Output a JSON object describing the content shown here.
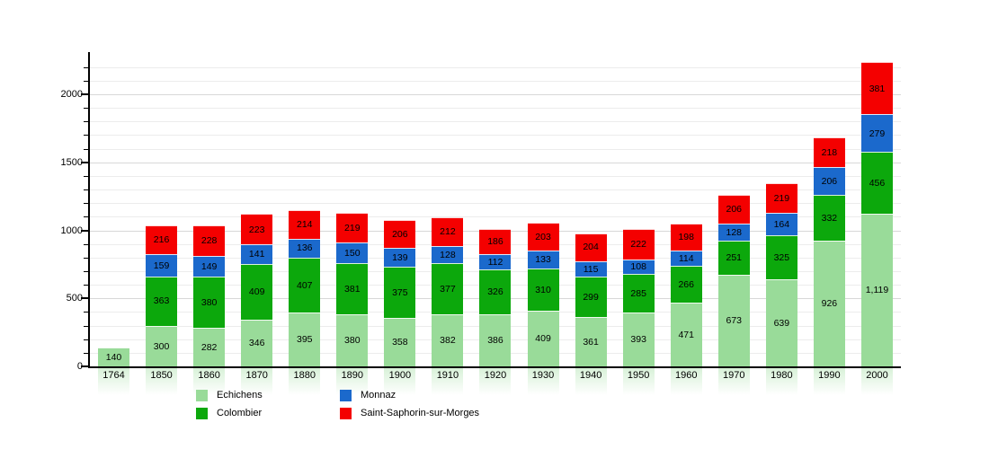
{
  "chart_data": {
    "type": "bar",
    "stacked": true,
    "title": "",
    "categories": [
      "1764",
      "1850",
      "1860",
      "1870",
      "1880",
      "1890",
      "1900",
      "1910",
      "1920",
      "1930",
      "1940",
      "1950",
      "1960",
      "1970",
      "1980",
      "1990",
      "2000"
    ],
    "series": [
      {
        "name": "Echichens",
        "color": "#99db99",
        "values": [
          140,
          300,
          282,
          346,
          395,
          380,
          358,
          382,
          386,
          409,
          361,
          393,
          471,
          673,
          639,
          926,
          1119
        ]
      },
      {
        "name": "Colombier",
        "color": "#0ca80c",
        "values": [
          0,
          363,
          380,
          409,
          407,
          381,
          375,
          377,
          326,
          310,
          299,
          285,
          266,
          251,
          325,
          332,
          456
        ]
      },
      {
        "name": "Monnaz",
        "color": "#1b69cc",
        "values": [
          0,
          159,
          149,
          141,
          136,
          150,
          139,
          128,
          112,
          133,
          115,
          108,
          114,
          128,
          164,
          206,
          279
        ]
      },
      {
        "name": "Saint-Saphorin-sur-Morges",
        "color": "#f40000",
        "values": [
          0,
          216,
          228,
          223,
          214,
          219,
          206,
          212,
          186,
          203,
          204,
          222,
          198,
          206,
          219,
          218,
          381
        ]
      }
    ],
    "xlabel": "",
    "ylabel": "",
    "ylim": [
      0,
      2297
    ],
    "y_major_ticks": [
      0,
      500,
      1000,
      1500,
      2000
    ],
    "y_minor_step": 100,
    "grid": true,
    "legend_position": "bottom",
    "legend_order": [
      "Echichens",
      "Monnaz",
      "Colombier",
      "Saint-Saphorin-sur-Morges"
    ],
    "value_labels_shown": true,
    "bar_label_color": "#000000",
    "axis_color": "#000000",
    "background_color": "#ffffff"
  }
}
